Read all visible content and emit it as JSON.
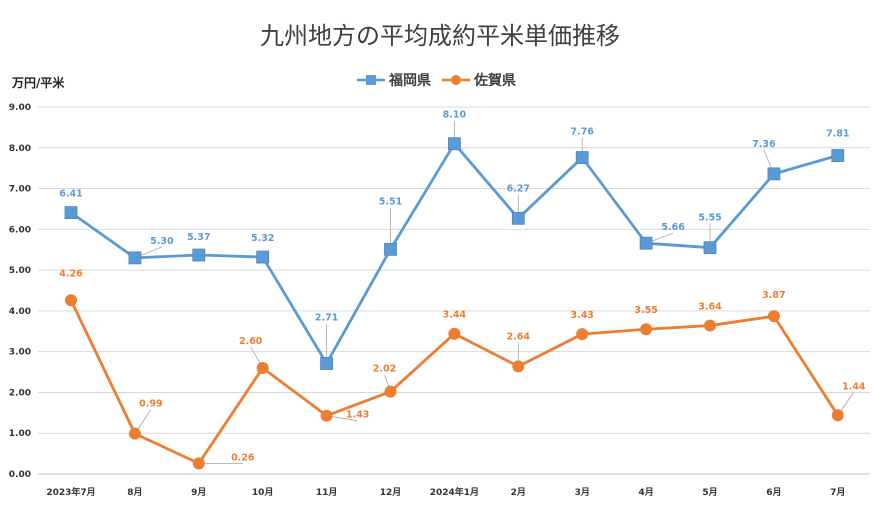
{
  "chart_data": {
    "type": "line",
    "title": "九州地方の平均成約平米単価推移",
    "ylabel": "万円/平米",
    "ylim": [
      0,
      9
    ],
    "yticks": [
      "0.00",
      "1.00",
      "2.00",
      "3.00",
      "4.00",
      "5.00",
      "6.00",
      "7.00",
      "8.00",
      "9.00"
    ],
    "grid": true,
    "legend_position": "top",
    "categories": [
      "2023年7月",
      "8月",
      "9月",
      "10月",
      "11月",
      "12月",
      "2024年1月",
      "2月",
      "3月",
      "4月",
      "5月",
      "6月",
      "7月"
    ],
    "series": [
      {
        "name": "福岡県",
        "color": "#5B9BD5",
        "marker": "square",
        "values": [
          6.41,
          5.3,
          5.37,
          5.32,
          2.71,
          5.51,
          8.1,
          6.27,
          7.76,
          5.66,
          5.55,
          7.36,
          7.81
        ],
        "labels": [
          "6.41",
          "5.30",
          "5.37",
          "5.32",
          "2.71",
          "5.51",
          "8.10",
          "6.27",
          "7.76",
          "5.66",
          "5.55",
          "7.36",
          "7.81"
        ]
      },
      {
        "name": "佐賀県",
        "color": "#ED7D31",
        "marker": "circle",
        "values": [
          4.26,
          0.99,
          0.26,
          2.6,
          1.43,
          2.02,
          3.44,
          2.64,
          3.43,
          3.55,
          3.64,
          3.87,
          1.44
        ],
        "labels": [
          "4.26",
          "0.99",
          "0.26",
          "2.60",
          "1.43",
          "2.02",
          "3.44",
          "2.64",
          "3.43",
          "3.55",
          "3.64",
          "3.87",
          "1.44"
        ]
      }
    ]
  }
}
